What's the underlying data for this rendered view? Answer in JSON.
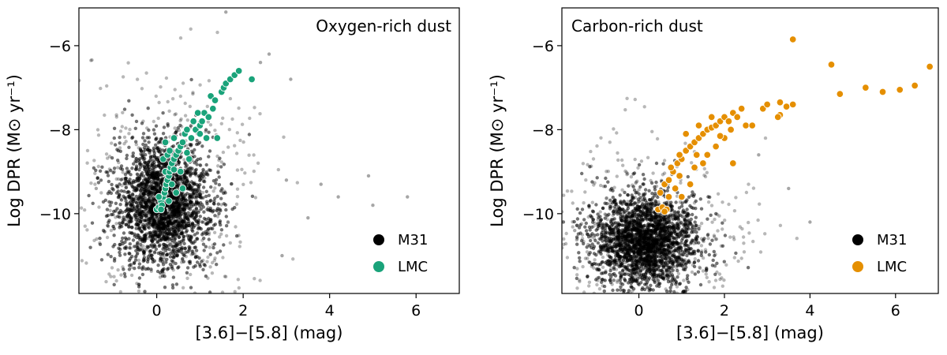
{
  "chart_data": [
    {
      "type": "scatter",
      "title": "Oxygen-rich dust",
      "xlabel": "[3.6]−[5.8] (mag)",
      "ylabel": "Log DPR (M⊙ yr⁻¹)",
      "xlim": [
        -1.8,
        7.0
      ],
      "ylim": [
        -11.9,
        -5.1
      ],
      "xticks": [
        0,
        2,
        4,
        6
      ],
      "xtick_labels": [
        "0",
        "2",
        "4",
        "6"
      ],
      "yticks": [
        -10,
        -8,
        -6
      ],
      "ytick_labels": [
        "−10",
        "−8",
        "−6"
      ],
      "legend_position": "lower-right",
      "series": [
        {
          "name": "M31",
          "color": "#000000",
          "cloud": {
            "center": [
              0.15,
              -9.75
            ],
            "spread": [
              0.55,
              0.75
            ],
            "count": 2600
          },
          "outliers": [
            [
              5.8,
              -9.6
            ],
            [
              4.9,
              -9.1
            ],
            [
              5.0,
              -9.8
            ],
            [
              3.5,
              -10.1
            ],
            [
              4.2,
              -9.6
            ],
            [
              3.0,
              -9.2
            ],
            [
              1.6,
              -5.2
            ],
            [
              2.6,
              -6.2
            ],
            [
              3.1,
              -6.8
            ],
            [
              3.8,
              -9.3
            ],
            [
              2.9,
              -11.0
            ],
            [
              -1.4,
              -9.4
            ],
            [
              2.4,
              -6.4
            ]
          ]
        },
        {
          "name": "LMC",
          "color": "#1aa37a",
          "points": [
            [
              0.0,
              -9.9
            ],
            [
              0.05,
              -9.85
            ],
            [
              0.1,
              -9.7
            ],
            [
              0.12,
              -9.8
            ],
            [
              0.15,
              -9.6
            ],
            [
              0.18,
              -9.5
            ],
            [
              0.2,
              -9.4
            ],
            [
              0.22,
              -9.3
            ],
            [
              0.25,
              -9.2
            ],
            [
              0.28,
              -9.1
            ],
            [
              0.2,
              -9.0
            ],
            [
              0.3,
              -9.0
            ],
            [
              0.32,
              -8.9
            ],
            [
              0.35,
              -8.8
            ],
            [
              0.15,
              -8.7
            ],
            [
              0.25,
              -8.6
            ],
            [
              0.4,
              -8.7
            ],
            [
              0.45,
              -8.6
            ],
            [
              0.3,
              -8.5
            ],
            [
              0.5,
              -8.5
            ],
            [
              0.55,
              -8.4
            ],
            [
              0.2,
              -8.3
            ],
            [
              0.4,
              -8.2
            ],
            [
              0.6,
              -8.3
            ],
            [
              0.65,
              -8.1
            ],
            [
              0.7,
              -8.0
            ],
            [
              0.8,
              -8.2
            ],
            [
              0.9,
              -8.0
            ],
            [
              1.0,
              -7.9
            ],
            [
              1.05,
              -7.8
            ],
            [
              1.1,
              -7.6
            ],
            [
              0.95,
              -7.6
            ],
            [
              1.2,
              -7.7
            ],
            [
              1.3,
              -7.5
            ],
            [
              1.25,
              -7.2
            ],
            [
              1.35,
              -7.3
            ],
            [
              1.5,
              -7.1
            ],
            [
              1.55,
              -7.0
            ],
            [
              1.6,
              -6.9
            ],
            [
              1.7,
              -6.8
            ],
            [
              1.8,
              -6.7
            ],
            [
              1.9,
              -6.6
            ],
            [
              2.2,
              -6.8
            ],
            [
              1.15,
              -8.2
            ],
            [
              0.75,
              -8.7
            ],
            [
              0.55,
              -9.0
            ],
            [
              0.35,
              -9.3
            ],
            [
              0.45,
              -9.5
            ],
            [
              0.6,
              -9.4
            ],
            [
              0.1,
              -9.9
            ],
            [
              0.28,
              -9.7
            ],
            [
              0.05,
              -9.6
            ],
            [
              0.4,
              -8.95
            ],
            [
              1.0,
              -8.1
            ],
            [
              0.85,
              -7.8
            ],
            [
              0.7,
              -8.55
            ],
            [
              1.4,
              -8.2
            ]
          ]
        }
      ]
    },
    {
      "type": "scatter",
      "title": "Carbon-rich dust",
      "xlabel": "[3.6]−[5.8] (mag)",
      "ylabel": "Log DPR (M⊙ yr⁻¹)",
      "xlim": [
        -1.8,
        7.0
      ],
      "ylim": [
        -11.9,
        -5.1
      ],
      "xticks": [
        0,
        2,
        4,
        6
      ],
      "xtick_labels": [
        "0",
        "2",
        "4",
        "6"
      ],
      "yticks": [
        -10,
        -8,
        -6
      ],
      "ytick_labels": [
        "−10",
        "−8",
        "−6"
      ],
      "legend_position": "lower-right",
      "series": [
        {
          "name": "M31",
          "color": "#000000",
          "cloud": {
            "center": [
              0.15,
              -10.65
            ],
            "spread": [
              0.6,
              0.55
            ],
            "count": 2600
          },
          "outliers": [
            [
              3.6,
              -5.85
            ],
            [
              4.5,
              -6.45
            ],
            [
              4.7,
              -7.15
            ],
            [
              5.3,
              -7.0
            ],
            [
              5.7,
              -7.1
            ],
            [
              6.1,
              -7.05
            ],
            [
              6.45,
              -6.95
            ],
            [
              6.8,
              -6.5
            ],
            [
              3.5,
              -9.4
            ],
            [
              4.0,
              -10.2
            ],
            [
              2.8,
              -8.6
            ],
            [
              -1.5,
              -10.4
            ]
          ]
        },
        {
          "name": "LMC",
          "color": "#e58f00",
          "points": [
            [
              0.45,
              -9.9
            ],
            [
              0.55,
              -9.85
            ],
            [
              0.65,
              -9.9
            ],
            [
              0.5,
              -9.5
            ],
            [
              0.6,
              -9.3
            ],
            [
              0.7,
              -9.2
            ],
            [
              0.8,
              -9.0
            ],
            [
              0.75,
              -8.9
            ],
            [
              0.9,
              -8.8
            ],
            [
              1.0,
              -8.7
            ],
            [
              0.95,
              -8.6
            ],
            [
              1.1,
              -8.5
            ],
            [
              1.2,
              -8.4
            ],
            [
              1.3,
              -8.3
            ],
            [
              1.35,
              -8.6
            ],
            [
              1.4,
              -8.2
            ],
            [
              1.5,
              -8.1
            ],
            [
              1.6,
              -8.0
            ],
            [
              1.7,
              -7.95
            ],
            [
              1.8,
              -7.9
            ],
            [
              1.9,
              -7.8
            ],
            [
              2.0,
              -7.7
            ],
            [
              2.1,
              -7.8
            ],
            [
              2.2,
              -7.6
            ],
            [
              2.3,
              -7.7
            ],
            [
              2.4,
              -7.5
            ],
            [
              2.2,
              -8.8
            ],
            [
              1.2,
              -9.3
            ],
            [
              1.0,
              -9.6
            ],
            [
              0.85,
              -9.4
            ],
            [
              1.6,
              -8.6
            ],
            [
              1.8,
              -8.4
            ],
            [
              2.0,
              -8.2
            ],
            [
              1.3,
              -8.9
            ],
            [
              1.5,
              -8.8
            ],
            [
              0.7,
              -9.6
            ],
            [
              1.9,
              -8.15
            ],
            [
              2.5,
              -7.9
            ],
            [
              1.1,
              -8.1
            ],
            [
              1.4,
              -7.9
            ],
            [
              1.7,
              -7.7
            ],
            [
              2.9,
              -7.5
            ],
            [
              3.0,
              -7.4
            ],
            [
              3.3,
              -7.35
            ],
            [
              3.45,
              -7.45
            ],
            [
              3.3,
              -7.65
            ],
            [
              3.25,
              -7.7
            ],
            [
              3.6,
              -7.4
            ],
            [
              3.6,
              -5.85
            ],
            [
              4.5,
              -6.45
            ],
            [
              4.7,
              -7.15
            ],
            [
              5.3,
              -7.0
            ],
            [
              5.7,
              -7.1
            ],
            [
              6.1,
              -7.05
            ],
            [
              6.45,
              -6.95
            ],
            [
              6.8,
              -6.5
            ],
            [
              0.95,
              -9.1
            ],
            [
              2.15,
              -8.0
            ],
            [
              2.65,
              -7.9
            ],
            [
              0.6,
              -9.95
            ]
          ]
        }
      ]
    }
  ]
}
